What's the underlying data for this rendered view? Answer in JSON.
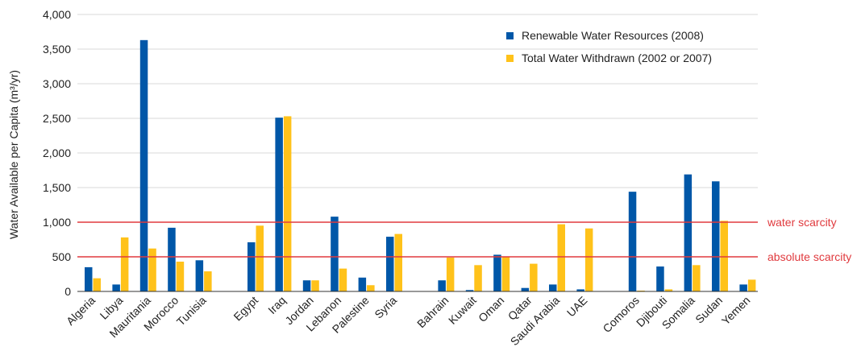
{
  "chart_data": {
    "type": "bar",
    "title": "",
    "xlabel": "",
    "ylabel": "Water Available per Capita (m³/yr)",
    "ylim": [
      0,
      4000
    ],
    "yticks": [
      "0",
      "500",
      "1,000",
      "1,500",
      "2,000",
      "2,500",
      "3,000",
      "3,500",
      "4,000"
    ],
    "ytick_values": [
      0,
      500,
      1000,
      1500,
      2000,
      2500,
      3000,
      3500,
      4000
    ],
    "grid": true,
    "legend_position": "top-right",
    "groups": [
      [
        "Algeria",
        "Libya",
        "Mauritania",
        "Morocco",
        "Tunisia"
      ],
      [
        "Egypt",
        "Iraq",
        "Jordan",
        "Lebanon",
        "Palestine",
        "Syria"
      ],
      [
        "Bahrain",
        "Kuwait",
        "Oman",
        "Qatar",
        "Saudi Arabia",
        "UAE"
      ],
      [
        "Comoros",
        "Djibouti",
        "Somalia",
        "Sudan",
        "Yemen"
      ]
    ],
    "categories": [
      "Algeria",
      "Libya",
      "Mauritania",
      "Morocco",
      "Tunisia",
      "Egypt",
      "Iraq",
      "Jordan",
      "Lebanon",
      "Palestine",
      "Syria",
      "Bahrain",
      "Kuwait",
      "Oman",
      "Qatar",
      "Saudi Arabia",
      "UAE",
      "Comoros",
      "Djibouti",
      "Somalia",
      "Sudan",
      "Yemen"
    ],
    "series": [
      {
        "name": "Renewable Water Resources (2008)",
        "color": "#0057a8",
        "values": [
          350,
          100,
          3630,
          920,
          450,
          710,
          2510,
          160,
          1080,
          200,
          790,
          160,
          20,
          530,
          50,
          100,
          30,
          1440,
          360,
          1690,
          1590,
          100
        ]
      },
      {
        "name": "Total Water Withdrawn (2002 or 2007)",
        "color": "#ffc21a",
        "values": [
          190,
          780,
          620,
          430,
          290,
          950,
          2530,
          160,
          330,
          90,
          830,
          490,
          380,
          500,
          400,
          970,
          910,
          10,
          30,
          380,
          1020,
          170
        ]
      }
    ],
    "reference_lines": [
      {
        "value": 1000,
        "label": "water scarcity",
        "color": "#e03a3e"
      },
      {
        "value": 500,
        "label": "absolute scarcity",
        "color": "#e03a3e"
      }
    ]
  }
}
